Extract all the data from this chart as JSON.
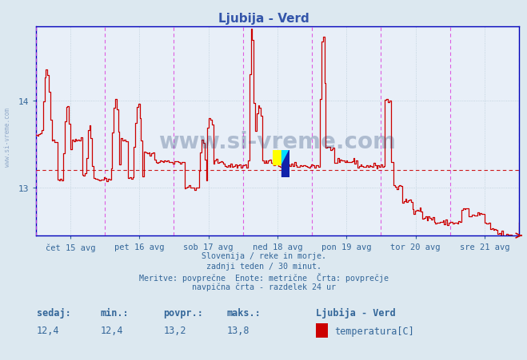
{
  "title": "Ljubija - Verd",
  "title_color": "#3355aa",
  "bg_color": "#dce8f0",
  "plot_bg_color": "#e8eff8",
  "line_color": "#cc0000",
  "avg_line_color": "#cc0000",
  "avg_value": 13.2,
  "ymin": 12.45,
  "ymax": 14.85,
  "yticks": [
    13.0,
    14.0
  ],
  "vline_color": "#dd44dd",
  "grid_color": "#b8ccd8",
  "xlabel_color": "#336699",
  "ylabel_color": "#336699",
  "day_labels": [
    "čet 15 avg",
    "pet 16 avg",
    "sob 17 avg",
    "ned 18 avg",
    "pon 19 avg",
    "tor 20 avg",
    "sre 21 avg"
  ],
  "n_points": 336,
  "subtitle_lines": [
    "Slovenija / reke in morje.",
    "zadnji teden / 30 minut.",
    "Meritve: povprečne  Enote: metrične  Črta: povprečje",
    "navpična črta - razdelek 24 ur"
  ],
  "stats_labels": [
    "sedaj:",
    "min.:",
    "povpr.:",
    "maks.:"
  ],
  "stats_values": [
    "12,4",
    "12,4",
    "13,2",
    "13,8"
  ],
  "legend_label": "Ljubija - Verd",
  "legend_series": "temperatura[C]",
  "legend_color": "#cc0000",
  "watermark": "www.si-vreme.com",
  "watermark_color": "#1a3a6a",
  "watermark_alpha": 0.28,
  "axis_color": "#0000bb",
  "tick_color": "#336699",
  "sidewatermark_color": "#5577aa",
  "sidewatermark_alpha": 0.55
}
